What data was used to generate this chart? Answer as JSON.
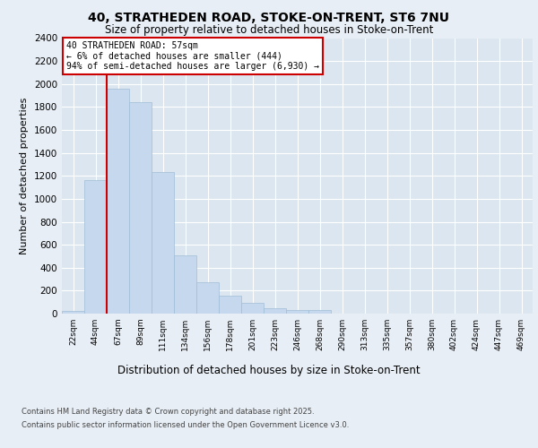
{
  "title_line1": "40, STRATHEDEN ROAD, STOKE-ON-TRENT, ST6 7NU",
  "title_line2": "Size of property relative to detached houses in Stoke-on-Trent",
  "xlabel": "Distribution of detached houses by size in Stoke-on-Trent",
  "ylabel": "Number of detached properties",
  "categories": [
    "22sqm",
    "44sqm",
    "67sqm",
    "89sqm",
    "111sqm",
    "134sqm",
    "156sqm",
    "178sqm",
    "201sqm",
    "223sqm",
    "246sqm",
    "268sqm",
    "290sqm",
    "313sqm",
    "335sqm",
    "357sqm",
    "380sqm",
    "402sqm",
    "424sqm",
    "447sqm",
    "469sqm"
  ],
  "values": [
    25,
    1160,
    1960,
    1840,
    1230,
    510,
    270,
    160,
    95,
    45,
    35,
    30,
    0,
    0,
    0,
    0,
    0,
    0,
    0,
    0,
    0
  ],
  "bar_color": "#c5d8ed",
  "bar_edge_color": "#a0bdd6",
  "vline_x": 1.5,
  "vline_color": "#cc0000",
  "annotation_text": "40 STRATHEDEN ROAD: 57sqm\n← 6% of detached houses are smaller (444)\n94% of semi-detached houses are larger (6,930) →",
  "annotation_box_color": "#ffffff",
  "annotation_box_edge_color": "#cc0000",
  "ylim": [
    0,
    2400
  ],
  "yticks": [
    0,
    200,
    400,
    600,
    800,
    1000,
    1200,
    1400,
    1600,
    1800,
    2000,
    2200,
    2400
  ],
  "bg_color": "#e8eef5",
  "plot_bg_color": "#dce6f0",
  "grid_color": "#ffffff",
  "footer_line1": "Contains HM Land Registry data © Crown copyright and database right 2025.",
  "footer_line2": "Contains public sector information licensed under the Open Government Licence v3.0."
}
